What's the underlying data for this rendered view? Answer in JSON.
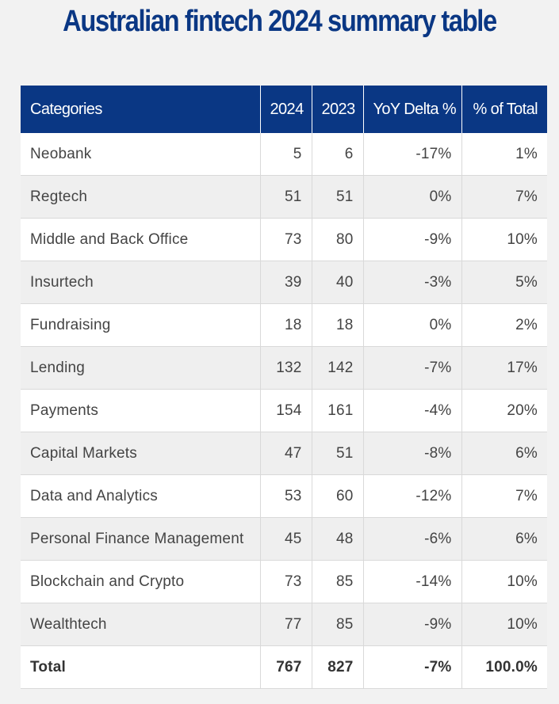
{
  "title": "Australian fintech 2024 summary table",
  "colors": {
    "header_bg": "#0a3784",
    "title": "#0a3784",
    "row_alt": "#efefef"
  },
  "table": {
    "headers": [
      "Categories",
      "2024",
      "2023",
      "YoY Delta %",
      "% of Total"
    ],
    "rows": [
      [
        "Neobank",
        "5",
        "6",
        "-17%",
        "1%"
      ],
      [
        "Regtech",
        "51",
        "51",
        "0%",
        "7%"
      ],
      [
        "Middle and Back Office",
        "73",
        "80",
        "-9%",
        "10%"
      ],
      [
        "Insurtech",
        "39",
        "40",
        "-3%",
        "5%"
      ],
      [
        "Fundraising",
        "18",
        "18",
        "0%",
        "2%"
      ],
      [
        "Lending",
        "132",
        "142",
        "-7%",
        "17%"
      ],
      [
        "Payments",
        "154",
        "161",
        "-4%",
        "20%"
      ],
      [
        "Capital Markets",
        "47",
        "51",
        "-8%",
        "6%"
      ],
      [
        "Data and Analytics",
        "53",
        "60",
        "-12%",
        "7%"
      ],
      [
        "Personal Finance Management",
        "45",
        "48",
        "-6%",
        "6%"
      ],
      [
        "Blockchain and Crypto",
        "73",
        "85",
        "-14%",
        "10%"
      ],
      [
        "Wealthtech",
        "77",
        "85",
        "-9%",
        "10%"
      ]
    ],
    "total": [
      "Total",
      "767",
      "827",
      "-7%",
      "100.0%"
    ]
  }
}
